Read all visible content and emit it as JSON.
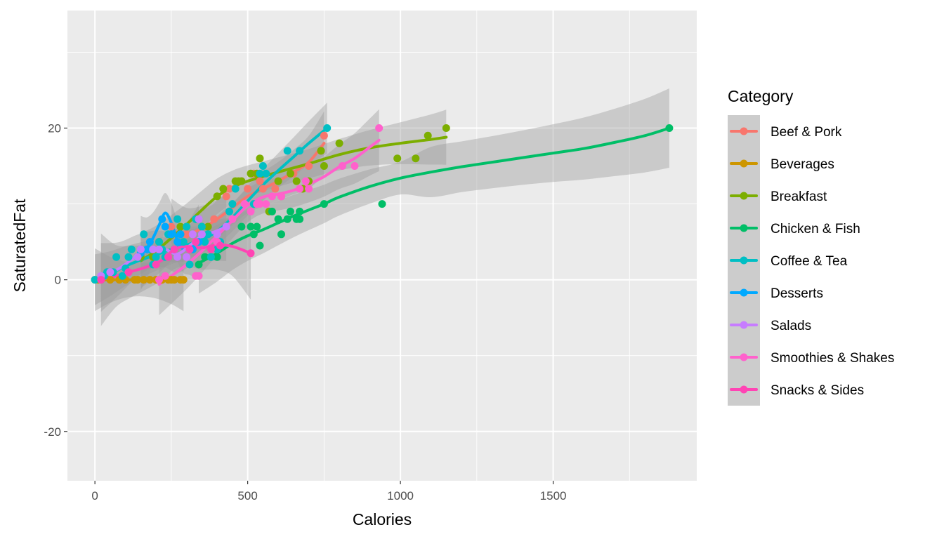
{
  "chart_data": {
    "type": "scatter",
    "xlabel": "Calories",
    "ylabel": "SaturatedFat",
    "xlim": [
      -90,
      1970
    ],
    "ylim": [
      -26.5,
      35.5
    ],
    "x_ticks": [
      0,
      500,
      1000,
      1500
    ],
    "y_ticks": [
      -20,
      0,
      20
    ],
    "x_tick_labels": [
      "0",
      "500",
      "1000",
      "1500"
    ],
    "y_tick_labels": [
      "-20",
      "0",
      "20"
    ],
    "grid": true,
    "legend": {
      "title": "Category",
      "position": "right"
    },
    "colors": {
      "panel": "#ebebeb",
      "grid_major": "#ffffff",
      "ribbon": "#999999"
    },
    "series": [
      {
        "name": "Beef & Pork",
        "color": "#F8766D",
        "points": [
          [
            250,
            7
          ],
          [
            300,
            6
          ],
          [
            330,
            5
          ],
          [
            390,
            8
          ],
          [
            430,
            11
          ],
          [
            440,
            12
          ],
          [
            480,
            13
          ],
          [
            500,
            12
          ],
          [
            520,
            14
          ],
          [
            540,
            13
          ],
          [
            550,
            12
          ],
          [
            590,
            12
          ],
          [
            610,
            11
          ],
          [
            650,
            14
          ],
          [
            700,
            15
          ],
          [
            740,
            17
          ],
          [
            750,
            19
          ]
        ],
        "smooth": [
          [
            250,
            6.5
          ],
          [
            300,
            6
          ],
          [
            350,
            6.8
          ],
          [
            400,
            8
          ],
          [
            450,
            9.5
          ],
          [
            500,
            11
          ],
          [
            550,
            12
          ],
          [
            600,
            13
          ],
          [
            650,
            14.2
          ],
          [
            700,
            15.5
          ],
          [
            750,
            18
          ]
        ]
      },
      {
        "name": "Beverages",
        "color": "#CD9600",
        "points": [
          [
            0,
            0
          ],
          [
            10,
            0
          ],
          [
            20,
            0
          ],
          [
            50,
            0
          ],
          [
            80,
            0
          ],
          [
            100,
            0
          ],
          [
            130,
            0
          ],
          [
            140,
            0
          ],
          [
            160,
            0
          ],
          [
            180,
            0
          ],
          [
            200,
            0
          ],
          [
            210,
            0
          ],
          [
            220,
            0
          ],
          [
            240,
            0
          ],
          [
            250,
            0
          ],
          [
            260,
            0
          ],
          [
            280,
            0
          ],
          [
            290,
            0
          ]
        ],
        "smooth": [
          [
            0,
            0
          ],
          [
            50,
            0
          ],
          [
            100,
            0
          ],
          [
            150,
            0
          ],
          [
            200,
            0
          ],
          [
            250,
            0
          ],
          [
            290,
            0
          ]
        ]
      },
      {
        "name": "Breakfast",
        "color": "#7CAE00",
        "points": [
          [
            150,
            3
          ],
          [
            190,
            3
          ],
          [
            210,
            5
          ],
          [
            250,
            6
          ],
          [
            280,
            7
          ],
          [
            300,
            7
          ],
          [
            330,
            8
          ],
          [
            350,
            7
          ],
          [
            370,
            7
          ],
          [
            400,
            11
          ],
          [
            420,
            12
          ],
          [
            460,
            13
          ],
          [
            470,
            13
          ],
          [
            480,
            13
          ],
          [
            510,
            14
          ],
          [
            530,
            14
          ],
          [
            540,
            16
          ],
          [
            570,
            9
          ],
          [
            600,
            13
          ],
          [
            640,
            14
          ],
          [
            660,
            13
          ],
          [
            680,
            12
          ],
          [
            700,
            13
          ],
          [
            740,
            17
          ],
          [
            750,
            15
          ],
          [
            800,
            18
          ],
          [
            990,
            16
          ],
          [
            1050,
            16
          ],
          [
            1090,
            19
          ],
          [
            1150,
            20
          ]
        ],
        "smooth": [
          [
            150,
            2.5
          ],
          [
            200,
            3.8
          ],
          [
            250,
            5.5
          ],
          [
            300,
            7.3
          ],
          [
            350,
            9.2
          ],
          [
            400,
            11
          ],
          [
            450,
            12.2
          ],
          [
            500,
            13
          ],
          [
            600,
            14.2
          ],
          [
            700,
            15.3
          ],
          [
            800,
            16.5
          ],
          [
            900,
            17.4
          ],
          [
            1000,
            18
          ],
          [
            1100,
            18.5
          ],
          [
            1150,
            18.8
          ]
        ]
      },
      {
        "name": "Chicken & Fish",
        "color": "#00BE67",
        "points": [
          [
            340,
            2
          ],
          [
            360,
            3
          ],
          [
            380,
            3
          ],
          [
            400,
            3
          ],
          [
            480,
            7
          ],
          [
            510,
            7
          ],
          [
            520,
            6
          ],
          [
            530,
            7
          ],
          [
            540,
            4.5
          ],
          [
            580,
            9
          ],
          [
            600,
            8
          ],
          [
            610,
            6
          ],
          [
            630,
            8
          ],
          [
            640,
            9
          ],
          [
            660,
            8
          ],
          [
            670,
            8
          ],
          [
            670,
            9
          ],
          [
            750,
            10
          ],
          [
            940,
            10
          ],
          [
            1880,
            20
          ]
        ],
        "smooth": [
          [
            340,
            2.2
          ],
          [
            400,
            3.5
          ],
          [
            450,
            4.8
          ],
          [
            500,
            5.8
          ],
          [
            550,
            6.6
          ],
          [
            600,
            7.5
          ],
          [
            650,
            8.4
          ],
          [
            700,
            9.2
          ],
          [
            750,
            10
          ],
          [
            800,
            10.9
          ],
          [
            900,
            12.3
          ],
          [
            1000,
            13.4
          ],
          [
            1100,
            14.2
          ],
          [
            1200,
            14.9
          ],
          [
            1300,
            15.5
          ],
          [
            1400,
            16.1
          ],
          [
            1500,
            16.7
          ],
          [
            1600,
            17.3
          ],
          [
            1700,
            18.1
          ],
          [
            1800,
            19
          ],
          [
            1880,
            20
          ]
        ]
      },
      {
        "name": "Coffee & Tea",
        "color": "#00BFC4",
        "points": [
          [
            0,
            0
          ],
          [
            30,
            0.5
          ],
          [
            40,
            1
          ],
          [
            60,
            1
          ],
          [
            70,
            3
          ],
          [
            90,
            0.5
          ],
          [
            100,
            1.5
          ],
          [
            110,
            3
          ],
          [
            120,
            4
          ],
          [
            140,
            3
          ],
          [
            160,
            6
          ],
          [
            180,
            4
          ],
          [
            190,
            2
          ],
          [
            200,
            3
          ],
          [
            210,
            5
          ],
          [
            220,
            4
          ],
          [
            230,
            3
          ],
          [
            240,
            6
          ],
          [
            250,
            6
          ],
          [
            260,
            4
          ],
          [
            270,
            8
          ],
          [
            280,
            6
          ],
          [
            290,
            5
          ],
          [
            300,
            7
          ],
          [
            310,
            2
          ],
          [
            320,
            4
          ],
          [
            330,
            8
          ],
          [
            350,
            7
          ],
          [
            360,
            5
          ],
          [
            370,
            6
          ],
          [
            380,
            3
          ],
          [
            400,
            4
          ],
          [
            410,
            5
          ],
          [
            440,
            9
          ],
          [
            450,
            10
          ],
          [
            460,
            12
          ],
          [
            520,
            10
          ],
          [
            540,
            14
          ],
          [
            550,
            15
          ],
          [
            560,
            14
          ],
          [
            630,
            17
          ],
          [
            670,
            17
          ],
          [
            760,
            20
          ]
        ],
        "smooth": [
          [
            0,
            0
          ],
          [
            50,
            0.8
          ],
          [
            100,
            1.8
          ],
          [
            150,
            2.6
          ],
          [
            200,
            3.3
          ],
          [
            250,
            4
          ],
          [
            300,
            4.6
          ],
          [
            350,
            5.3
          ],
          [
            400,
            6.4
          ],
          [
            450,
            8.2
          ],
          [
            500,
            10.4
          ],
          [
            550,
            12.5
          ],
          [
            600,
            14.4
          ],
          [
            650,
            16.2
          ],
          [
            700,
            18
          ],
          [
            760,
            20
          ]
        ]
      },
      {
        "name": "Desserts",
        "color": "#00A9FF",
        "points": [
          [
            150,
            3.5
          ],
          [
            170,
            4
          ],
          [
            180,
            5
          ],
          [
            220,
            8
          ],
          [
            230,
            7
          ],
          [
            250,
            6
          ],
          [
            270,
            5
          ],
          [
            280,
            6
          ],
          [
            320,
            4
          ],
          [
            340,
            5
          ]
        ],
        "smooth": [
          [
            150,
            3.5
          ],
          [
            170,
            4.2
          ],
          [
            190,
            5.5
          ],
          [
            210,
            7.2
          ],
          [
            230,
            8.8
          ],
          [
            250,
            7.5
          ],
          [
            270,
            5.2
          ],
          [
            290,
            4
          ],
          [
            310,
            4.3
          ],
          [
            340,
            5
          ]
        ]
      },
      {
        "name": "Salads",
        "color": "#C77CFF",
        "points": [
          [
            20,
            0.5
          ],
          [
            50,
            1
          ],
          [
            140,
            3
          ],
          [
            150,
            4
          ],
          [
            190,
            4
          ],
          [
            210,
            4
          ],
          [
            270,
            3
          ],
          [
            300,
            3
          ],
          [
            320,
            6
          ],
          [
            340,
            8
          ],
          [
            350,
            6
          ],
          [
            400,
            6
          ],
          [
            430,
            7
          ]
        ],
        "smooth": [
          [
            20,
            0.3
          ],
          [
            80,
            1.5
          ],
          [
            140,
            3.2
          ],
          [
            190,
            4
          ],
          [
            230,
            4
          ],
          [
            270,
            3.4
          ],
          [
            310,
            4.5
          ],
          [
            350,
            5.8
          ],
          [
            390,
            6.3
          ],
          [
            430,
            7
          ]
        ]
      },
      {
        "name": "Smoothies & Shakes",
        "color": "#FF61CC",
        "points": [
          [
            210,
            0
          ],
          [
            230,
            0.5
          ],
          [
            330,
            0.5
          ],
          [
            340,
            0.5
          ],
          [
            400,
            5
          ],
          [
            450,
            8
          ],
          [
            490,
            10
          ],
          [
            510,
            9
          ],
          [
            530,
            10
          ],
          [
            540,
            10
          ],
          [
            560,
            10
          ],
          [
            580,
            11
          ],
          [
            610,
            11
          ],
          [
            670,
            12
          ],
          [
            690,
            13
          ],
          [
            700,
            12
          ],
          [
            810,
            15
          ],
          [
            850,
            15
          ],
          [
            930,
            20
          ]
        ],
        "smooth": [
          [
            210,
            -0.6
          ],
          [
            250,
            0.5
          ],
          [
            300,
            2
          ],
          [
            350,
            3.8
          ],
          [
            400,
            5.8
          ],
          [
            450,
            7.8
          ],
          [
            500,
            9.8
          ],
          [
            550,
            10.9
          ],
          [
            600,
            11.3
          ],
          [
            650,
            11.8
          ],
          [
            700,
            12.6
          ],
          [
            750,
            13.6
          ],
          [
            800,
            14.9
          ],
          [
            850,
            16
          ],
          [
            900,
            17.5
          ],
          [
            930,
            18.4
          ]
        ]
      },
      {
        "name": "Snacks & Sides",
        "color": "#FF44B4",
        "points": [
          [
            20,
            0
          ],
          [
            110,
            1
          ],
          [
            200,
            2
          ],
          [
            240,
            3
          ],
          [
            260,
            4
          ],
          [
            310,
            4
          ],
          [
            330,
            5
          ],
          [
            380,
            4
          ],
          [
            410,
            4.5
          ],
          [
            510,
            3.5
          ]
        ],
        "smooth": [
          [
            20,
            0
          ],
          [
            70,
            0.5
          ],
          [
            120,
            1.1
          ],
          [
            170,
            1.7
          ],
          [
            220,
            2.6
          ],
          [
            260,
            4
          ],
          [
            300,
            4.4
          ],
          [
            350,
            4.2
          ],
          [
            400,
            4.6
          ],
          [
            450,
            4.4
          ],
          [
            510,
            3.5
          ]
        ]
      }
    ]
  }
}
